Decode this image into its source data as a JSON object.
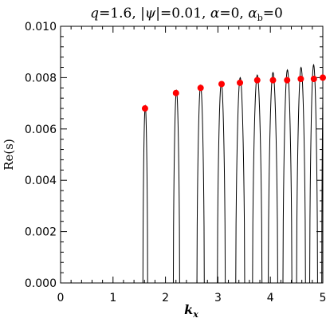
{
  "chart_data": {
    "type": "line",
    "title": "q=1.6, |ψ|=0.01, α=0, α_b=0",
    "title_parts": {
      "q": "q",
      "q_val": "=1.6,  ",
      "psi": "|ψ|",
      "psi_val": "=0.01,  ",
      "alpha": "α",
      "alpha_val": "=0,  ",
      "alpha_b": "α",
      "alpha_b_sub": "b",
      "alpha_b_val": "=0"
    },
    "xlabel": "k",
    "xlabel_sub": "x",
    "ylabel": "Re(s)",
    "xlim": [
      0,
      5
    ],
    "ylim": [
      0.0,
      0.01
    ],
    "x_ticks": [
      0,
      1,
      2,
      3,
      4,
      5
    ],
    "x_tick_labels": [
      "0",
      "1",
      "2",
      "3",
      "4",
      "5"
    ],
    "y_ticks": [
      0.0,
      0.002,
      0.004,
      0.006,
      0.008,
      0.01
    ],
    "y_tick_labels": [
      "0.000",
      "0.002",
      "0.004",
      "0.006",
      "0.008",
      "0.010"
    ],
    "grid": false,
    "series": [
      {
        "style": "solid-black-line",
        "color": "#000000",
        "lobes": [
          {
            "start": 1.57,
            "end": 1.66,
            "peak": 0.0069
          },
          {
            "start": 2.15,
            "end": 2.27,
            "peak": 0.0075
          },
          {
            "start": 2.6,
            "end": 2.74,
            "peak": 0.0077
          },
          {
            "start": 2.99,
            "end": 3.14,
            "peak": 0.0078
          },
          {
            "start": 3.34,
            "end": 3.51,
            "peak": 0.008
          },
          {
            "start": 3.66,
            "end": 3.84,
            "peak": 0.0081
          },
          {
            "start": 3.96,
            "end": 4.14,
            "peak": 0.0082
          },
          {
            "start": 4.24,
            "end": 4.41,
            "peak": 0.0083
          },
          {
            "start": 4.5,
            "end": 4.67,
            "peak": 0.0084
          },
          {
            "start": 4.75,
            "end": 4.9,
            "peak": 0.0085
          },
          {
            "start": 4.98,
            "end": 5.06,
            "peak": 0.0087
          }
        ]
      },
      {
        "style": "red-markers",
        "color": "#ff0000",
        "x": [
          1.61,
          2.2,
          2.67,
          3.07,
          3.42,
          3.75,
          4.05,
          4.32,
          4.58,
          4.83,
          5.0
        ],
        "y": [
          0.0068,
          0.0074,
          0.0076,
          0.00775,
          0.0078,
          0.0079,
          0.0079,
          0.0079,
          0.00795,
          0.00795,
          0.008
        ]
      }
    ]
  }
}
